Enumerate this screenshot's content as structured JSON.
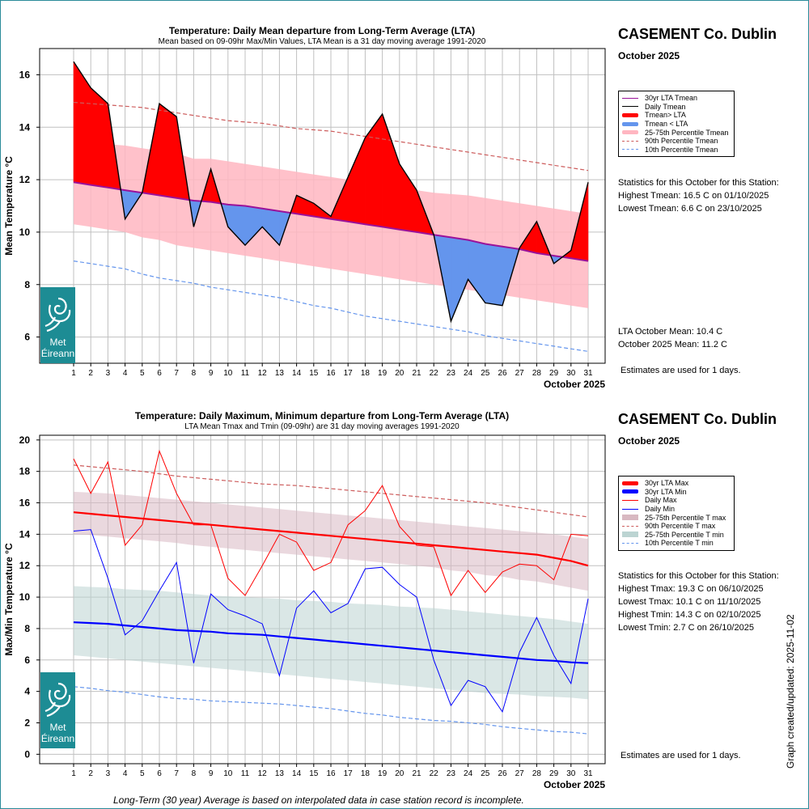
{
  "page": {
    "footnote": "Long-Term (30 year) Average is based on interpolated data in case station record is incomplete.",
    "updated": "Graph created/updated: 2025-11-02",
    "logo_line1": "Met",
    "logo_line2": "Éireann"
  },
  "top_panel": {
    "station": "CASEMENT Co. Dublin",
    "month": "October 2025",
    "legend": [
      {
        "label": "30yr LTA Tmean",
        "style": "line",
        "color": "#9a129a"
      },
      {
        "label": "Daily Tmean",
        "style": "line",
        "color": "#000000"
      },
      {
        "label": "Tmean> LTA",
        "style": "thick",
        "color": "#ff0000"
      },
      {
        "label": "Tmean < LTA",
        "style": "thick",
        "color": "#6495ed"
      },
      {
        "label": "25-75th Percentile Tmean",
        "style": "thick",
        "color": "#ffb6c1"
      },
      {
        "label": "90th Percentile Tmean",
        "style": "dash",
        "color": "#cd5c5c"
      },
      {
        "label": "10th Percentile Tmean",
        "style": "dash",
        "color": "#6495ed"
      }
    ],
    "stats_title": "Statistics for this October for this Station:",
    "stats": [
      "Highest Tmean: 16.5 C on 01/10/2025",
      "Lowest Tmean: 6.6 C on 23/10/2025"
    ],
    "means": [
      "LTA October Mean: 10.4 C",
      "October 2025 Mean: 11.2 C"
    ],
    "estimates": "Estimates are used for 1 days."
  },
  "bottom_panel": {
    "station": "CASEMENT Co. Dublin",
    "month": "October 2025",
    "legend": [
      {
        "label": "30yr LTA Max",
        "style": "thick",
        "color": "#ff0000"
      },
      {
        "label": "30yr LTA Min",
        "style": "thick",
        "color": "#0000ff"
      },
      {
        "label": "Daily Max",
        "style": "line",
        "color": "#ff0000"
      },
      {
        "label": "Daily Min",
        "style": "line",
        "color": "#0000ff"
      },
      {
        "label": "25-75th Percentile T max",
        "style": "band",
        "color": "#d8b8c2"
      },
      {
        "label": "90th Percentile T max",
        "style": "dash",
        "color": "#cd5c5c"
      },
      {
        "label": "25-75th Percentile T min",
        "style": "band",
        "color": "#bcd4d2"
      },
      {
        "label": "10th Percentile T min",
        "style": "dash",
        "color": "#6495ed"
      }
    ],
    "stats_title": "Statistics for this October for this Station:",
    "stats": [
      "Highest Tmax: 19.3 C on 06/10/2025",
      "Lowest Tmax: 10.1 C on 11/10/2025",
      "Highest Tmin: 14.3 C on 02/10/2025",
      "Lowest Tmin: 2.7 C on 26/10/2025"
    ],
    "estimates": "Estimates are used for 1 days."
  },
  "chart_data": [
    {
      "type": "area",
      "title": "Temperature: Daily Mean departure from Long-Term Average (LTA)",
      "subtitle": "Mean based on 09-09hr Max/Min Values, LTA Mean is a 31 day moving average 1991-2020",
      "xlabel": "October 2025",
      "ylabel": "Mean Temperature °C",
      "ylim": [
        5,
        17
      ],
      "yticks": [
        6,
        8,
        10,
        12,
        14,
        16
      ],
      "x": [
        1,
        2,
        3,
        4,
        5,
        6,
        7,
        8,
        9,
        10,
        11,
        12,
        13,
        14,
        15,
        16,
        17,
        18,
        19,
        20,
        21,
        22,
        23,
        24,
        25,
        26,
        27,
        28,
        29,
        30,
        31
      ],
      "grid": true,
      "series": [
        {
          "name": "Daily Tmean",
          "color": "#000000",
          "values": [
            16.5,
            15.5,
            14.9,
            10.5,
            11.5,
            14.9,
            14.4,
            10.2,
            12.4,
            10.2,
            9.5,
            10.2,
            9.5,
            11.4,
            11.1,
            10.6,
            12.1,
            13.6,
            14.5,
            12.6,
            11.6,
            9.9,
            6.6,
            8.2,
            7.3,
            7.2,
            9.4,
            10.4,
            8.8,
            9.3,
            11.9
          ]
        },
        {
          "name": "30yr LTA Tmean",
          "color": "#9a129a",
          "values": [
            11.9,
            11.8,
            11.7,
            11.6,
            11.5,
            11.4,
            11.3,
            11.2,
            11.15,
            11.05,
            11.0,
            10.9,
            10.8,
            10.7,
            10.6,
            10.5,
            10.4,
            10.3,
            10.2,
            10.1,
            10.0,
            9.9,
            9.8,
            9.7,
            9.55,
            9.45,
            9.35,
            9.2,
            9.1,
            9.0,
            8.9
          ]
        },
        {
          "name": "25th Percentile Tmean",
          "color": "#ffb6c1",
          "values": [
            10.3,
            10.2,
            10.1,
            10.0,
            9.8,
            9.7,
            9.5,
            9.4,
            9.3,
            9.2,
            9.1,
            9.0,
            8.9,
            8.8,
            8.7,
            8.6,
            8.5,
            8.4,
            8.3,
            8.2,
            8.1,
            8.0,
            7.9,
            7.8,
            7.7,
            7.6,
            7.5,
            7.4,
            7.3,
            7.2,
            7.1
          ]
        },
        {
          "name": "75th Percentile Tmean",
          "color": "#ffb6c1",
          "values": [
            13.5,
            13.4,
            13.35,
            13.3,
            13.2,
            13.1,
            13.0,
            12.8,
            12.8,
            12.7,
            12.6,
            12.5,
            12.4,
            12.3,
            12.2,
            12.1,
            12.0,
            11.9,
            11.8,
            11.7,
            11.6,
            11.5,
            11.45,
            11.4,
            11.3,
            11.2,
            11.1,
            11.0,
            10.9,
            10.8,
            10.7
          ]
        },
        {
          "name": "90th Percentile Tmean",
          "color": "#cd5c5c",
          "values": [
            14.95,
            14.9,
            14.85,
            14.8,
            14.75,
            14.65,
            14.55,
            14.45,
            14.35,
            14.25,
            14.2,
            14.15,
            14.05,
            13.95,
            13.9,
            13.85,
            13.75,
            13.65,
            13.55,
            13.45,
            13.35,
            13.25,
            13.15,
            13.05,
            12.95,
            12.85,
            12.75,
            12.65,
            12.55,
            12.45,
            12.35
          ]
        },
        {
          "name": "10th Percentile Tmean",
          "color": "#6495ed",
          "values": [
            8.9,
            8.8,
            8.7,
            8.6,
            8.4,
            8.25,
            8.15,
            8.05,
            7.9,
            7.8,
            7.7,
            7.6,
            7.5,
            7.35,
            7.2,
            7.1,
            6.95,
            6.8,
            6.7,
            6.6,
            6.5,
            6.4,
            6.3,
            6.2,
            6.05,
            5.95,
            5.85,
            5.75,
            5.65,
            5.55,
            5.45
          ]
        }
      ]
    },
    {
      "type": "line",
      "title": "Temperature: Daily Maximum, Minimum departure from Long-Term Average (LTA)",
      "subtitle": "LTA Mean Tmax and Tmin (09-09hr) are 31 day moving averages 1991-2020",
      "xlabel": "October 2025",
      "ylabel": "Max/Min Temperature °C",
      "ylim": [
        -0.6,
        20.3
      ],
      "yticks": [
        0,
        2,
        4,
        6,
        8,
        10,
        12,
        14,
        16,
        18,
        20
      ],
      "x": [
        1,
        2,
        3,
        4,
        5,
        6,
        7,
        8,
        9,
        10,
        11,
        12,
        13,
        14,
        15,
        16,
        17,
        18,
        19,
        20,
        21,
        22,
        23,
        24,
        25,
        26,
        27,
        28,
        29,
        30,
        31
      ],
      "grid": true,
      "series": [
        {
          "name": "Daily Max",
          "color": "#ff0000",
          "values": [
            18.8,
            16.6,
            18.6,
            13.3,
            14.6,
            19.3,
            16.6,
            14.6,
            14.6,
            11.2,
            10.1,
            12.0,
            14.0,
            13.5,
            11.7,
            12.2,
            14.6,
            15.5,
            17.1,
            14.5,
            13.3,
            13.2,
            10.1,
            11.7,
            10.3,
            11.6,
            12.1,
            12.0,
            11.1,
            14.0,
            13.9
          ]
        },
        {
          "name": "Daily Min",
          "color": "#0000ff",
          "values": [
            14.2,
            14.3,
            11.2,
            7.6,
            8.5,
            10.4,
            12.2,
            5.8,
            10.2,
            9.2,
            8.8,
            8.3,
            5.0,
            9.3,
            10.4,
            9.0,
            9.6,
            11.8,
            11.9,
            10.8,
            10.0,
            6.0,
            3.1,
            4.7,
            4.3,
            2.7,
            6.5,
            8.7,
            6.3,
            4.5,
            9.9
          ]
        },
        {
          "name": "30yr LTA Max",
          "color": "#ff0000",
          "values": [
            15.4,
            15.3,
            15.2,
            15.1,
            15.0,
            14.9,
            14.8,
            14.7,
            14.6,
            14.5,
            14.4,
            14.3,
            14.2,
            14.1,
            14.0,
            13.9,
            13.8,
            13.7,
            13.6,
            13.5,
            13.4,
            13.3,
            13.2,
            13.1,
            13.0,
            12.9,
            12.8,
            12.7,
            12.5,
            12.3,
            12.0
          ]
        },
        {
          "name": "30yr LTA Min",
          "color": "#0000ff",
          "values": [
            8.4,
            8.35,
            8.3,
            8.2,
            8.1,
            8.0,
            7.9,
            7.85,
            7.8,
            7.7,
            7.65,
            7.6,
            7.5,
            7.4,
            7.3,
            7.2,
            7.1,
            7.0,
            6.9,
            6.8,
            6.7,
            6.6,
            6.5,
            6.4,
            6.3,
            6.2,
            6.1,
            6.0,
            5.95,
            5.85,
            5.8
          ]
        },
        {
          "name": "25th Percentile T max",
          "color": "#d8b8c2",
          "values": [
            14.0,
            13.95,
            13.85,
            13.75,
            13.65,
            13.55,
            13.45,
            13.3,
            13.2,
            13.1,
            13.0,
            12.9,
            12.8,
            12.7,
            12.6,
            12.5,
            12.4,
            12.3,
            12.2,
            12.1,
            12.0,
            11.9,
            11.7,
            11.6,
            11.4,
            11.3,
            11.1,
            11.0,
            10.8,
            10.6,
            10.4
          ]
        },
        {
          "name": "75th Percentile T max",
          "color": "#d8b8c2",
          "values": [
            16.7,
            16.65,
            16.6,
            16.5,
            16.4,
            16.3,
            16.2,
            16.1,
            16.0,
            15.9,
            15.8,
            15.7,
            15.6,
            15.5,
            15.4,
            15.3,
            15.2,
            15.1,
            15.0,
            14.9,
            14.8,
            14.7,
            14.6,
            14.5,
            14.4,
            14.3,
            14.2,
            14.1,
            14.0,
            13.85,
            13.7
          ]
        },
        {
          "name": "25th Percentile T min",
          "color": "#bcd4d2",
          "values": [
            6.3,
            6.2,
            6.1,
            6.0,
            5.9,
            5.8,
            5.7,
            5.6,
            5.5,
            5.4,
            5.3,
            5.2,
            5.1,
            5.0,
            4.9,
            4.8,
            4.7,
            4.6,
            4.5,
            4.4,
            4.3,
            4.2,
            4.1,
            4.0,
            3.9,
            3.85,
            3.8,
            3.7,
            3.65,
            3.6,
            3.5
          ]
        },
        {
          "name": "75th Percentile T min",
          "color": "#bcd4d2",
          "values": [
            10.7,
            10.65,
            10.6,
            10.5,
            10.45,
            10.4,
            10.3,
            10.2,
            10.1,
            10.05,
            10.0,
            9.95,
            9.9,
            9.8,
            9.75,
            9.7,
            9.6,
            9.55,
            9.5,
            9.4,
            9.35,
            9.3,
            9.2,
            9.1,
            9.0,
            8.9,
            8.8,
            8.7,
            8.6,
            8.45,
            8.3
          ]
        },
        {
          "name": "90th Percentile T max",
          "color": "#cd5c5c",
          "values": [
            18.4,
            18.3,
            18.2,
            18.1,
            18.0,
            17.85,
            17.7,
            17.6,
            17.5,
            17.4,
            17.3,
            17.2,
            17.15,
            17.1,
            17.0,
            16.9,
            16.8,
            16.7,
            16.6,
            16.5,
            16.4,
            16.3,
            16.2,
            16.1,
            16.0,
            15.85,
            15.7,
            15.55,
            15.4,
            15.25,
            15.1
          ]
        },
        {
          "name": "10th Percentile T min",
          "color": "#6495ed",
          "values": [
            4.3,
            4.2,
            4.05,
            3.95,
            3.8,
            3.65,
            3.55,
            3.5,
            3.4,
            3.35,
            3.3,
            3.25,
            3.2,
            3.1,
            3.0,
            2.9,
            2.75,
            2.6,
            2.5,
            2.35,
            2.25,
            2.15,
            2.1,
            2.0,
            1.9,
            1.75,
            1.65,
            1.55,
            1.45,
            1.4,
            1.3
          ]
        }
      ]
    }
  ]
}
